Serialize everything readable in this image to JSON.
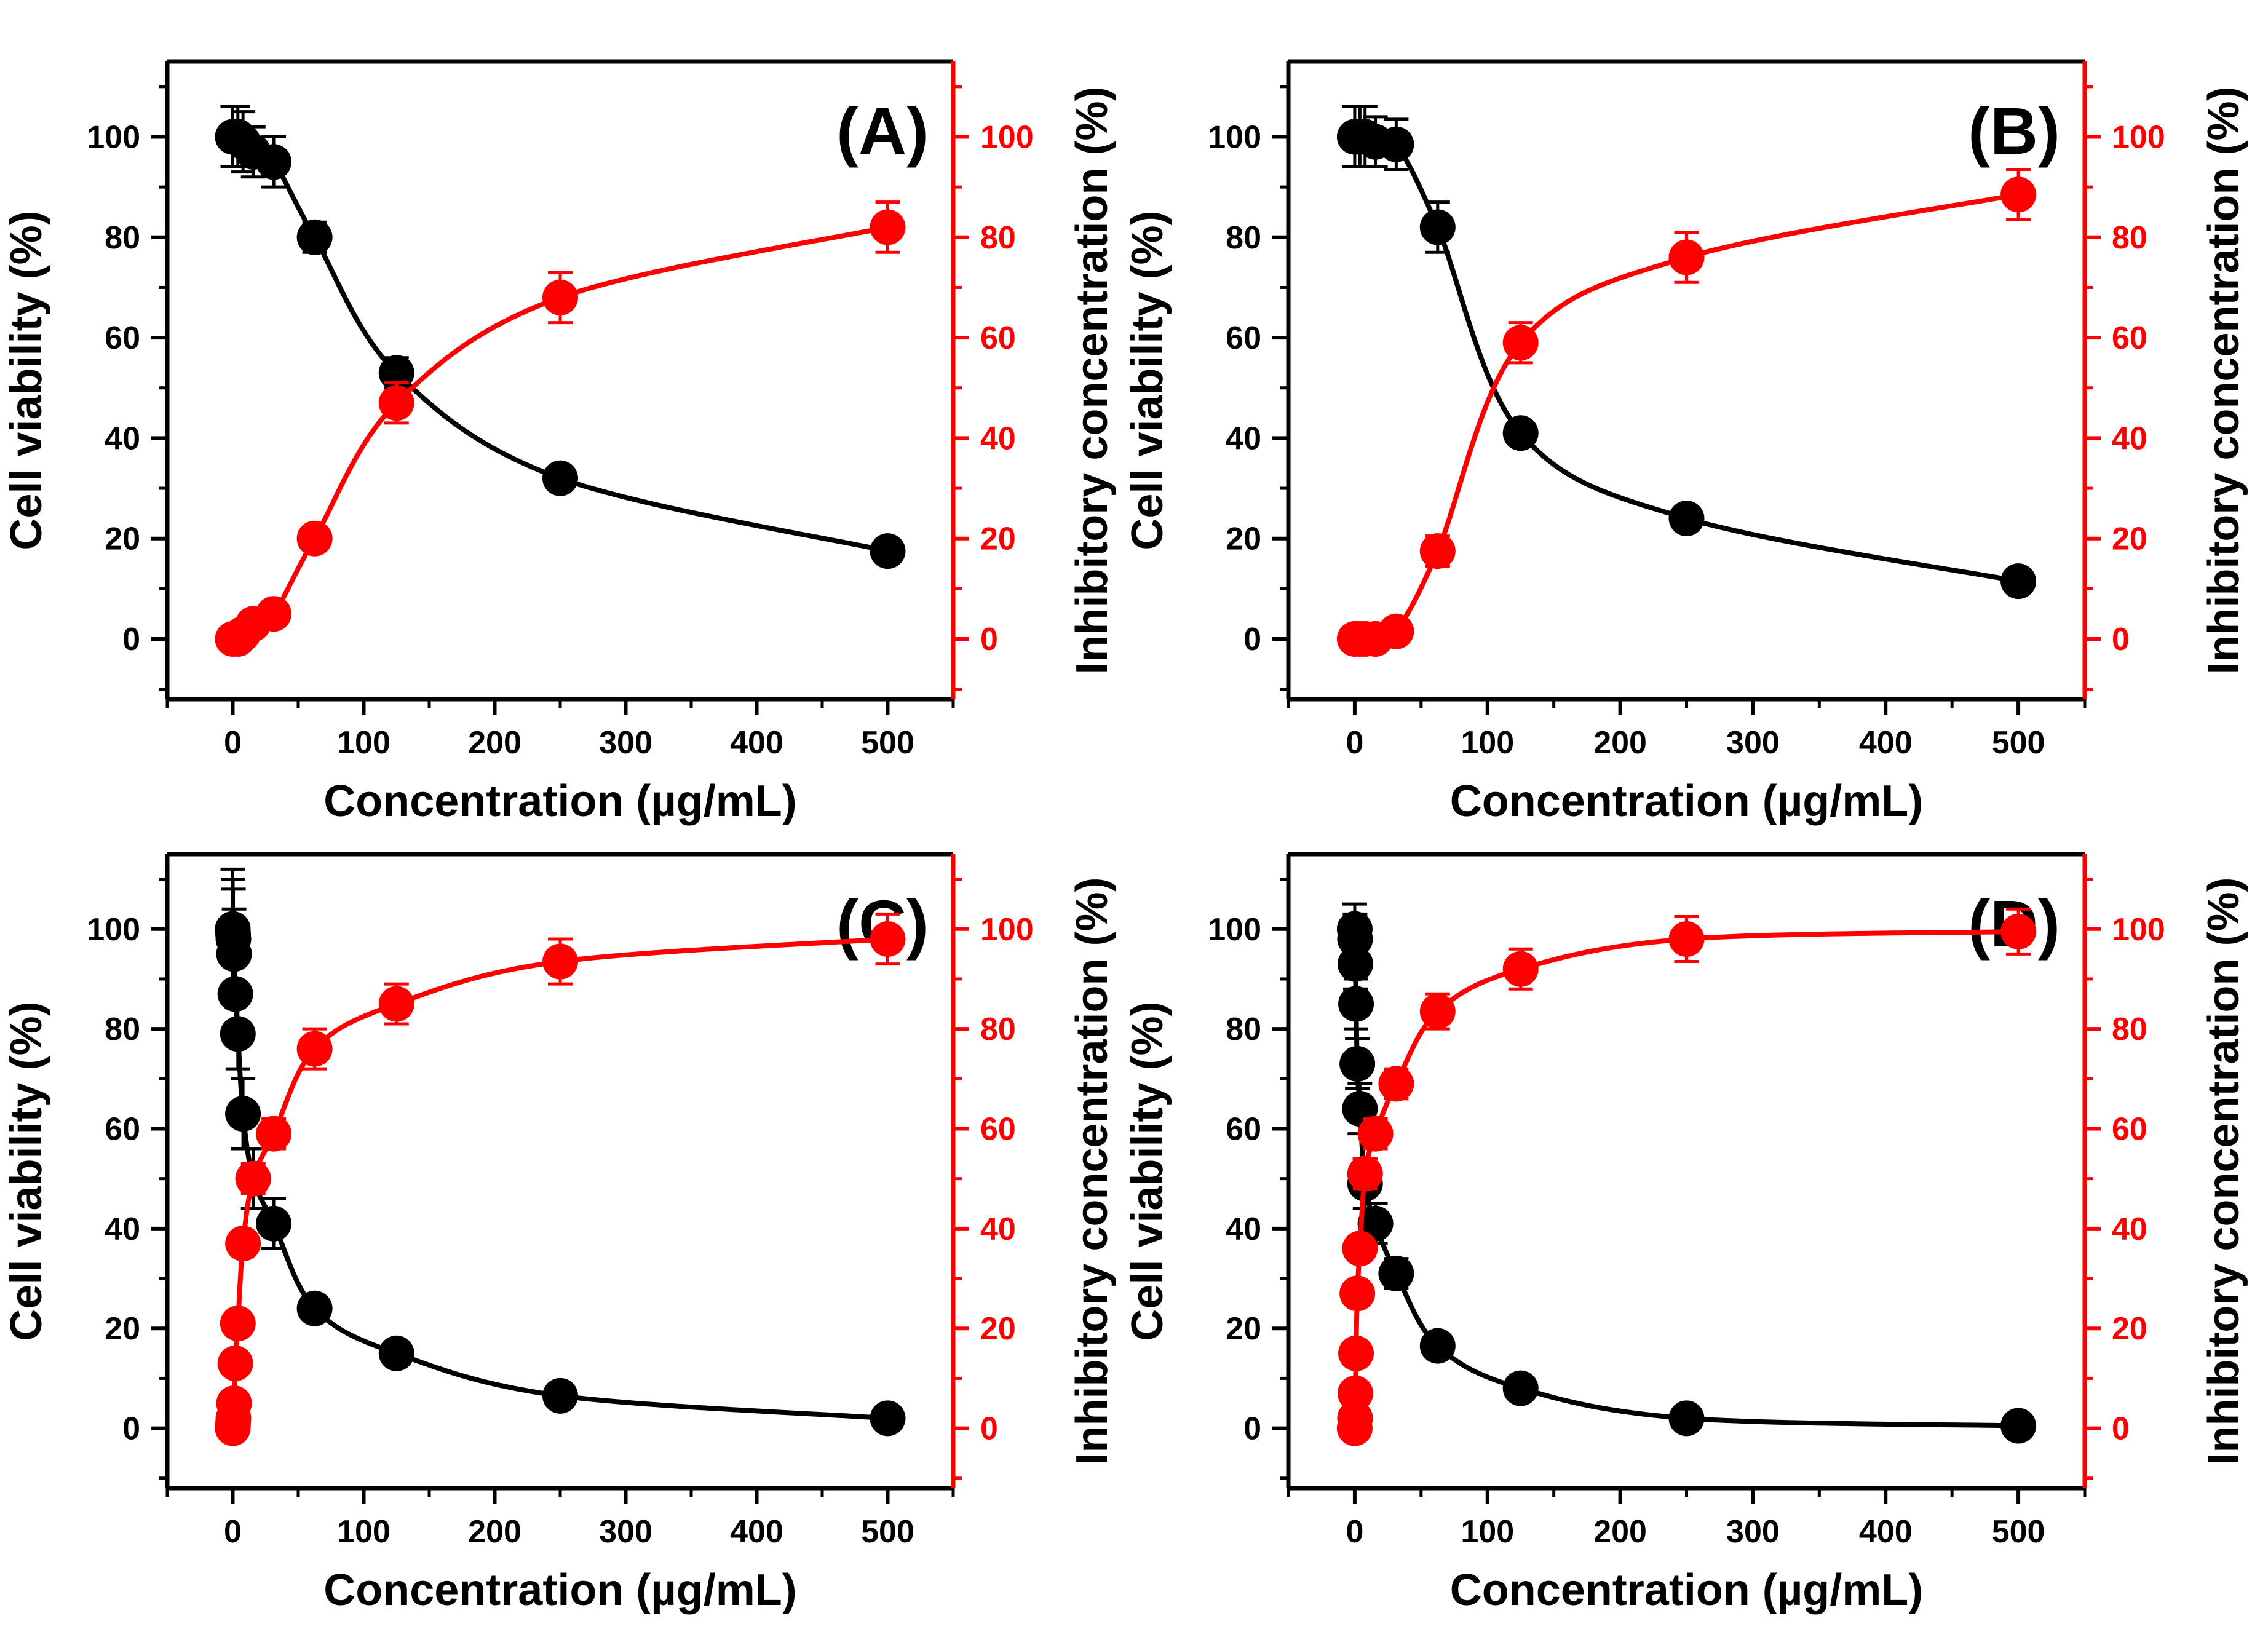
{
  "colors": {
    "viability": "#000000",
    "inhibition": "#ff0000",
    "background": "#ffffff"
  },
  "chart_data": [
    {
      "type": "scatter",
      "panel_label": "(A)",
      "xlabel": "Concentration (µg/mL)",
      "ylabel_left": "Cell viability (%)",
      "ylabel_right": "Inhibitory concentration (%)",
      "xlim": [
        -50,
        550
      ],
      "ylim": [
        -12,
        115
      ],
      "xticks": [
        0,
        100,
        200,
        300,
        400,
        500
      ],
      "yticks": [
        0,
        20,
        40,
        60,
        80,
        100
      ],
      "grid": false,
      "series": [
        {
          "axis": "left",
          "color": "#000000",
          "x": [
            0,
            3.9,
            7.8,
            15.6,
            31.25,
            62.5,
            125,
            250,
            500
          ],
          "y": [
            100,
            100,
            99,
            97,
            95,
            80,
            53,
            32,
            17.5
          ],
          "err": [
            6,
            6,
            6,
            5,
            5,
            3,
            3,
            2,
            1.5
          ]
        },
        {
          "axis": "right",
          "color": "#ff0000",
          "x": [
            0,
            3.9,
            7.8,
            15.6,
            31.25,
            62.5,
            125,
            250,
            500
          ],
          "y": [
            0,
            0,
            1,
            3,
            5,
            20,
            47,
            68,
            82
          ],
          "err": [
            1,
            1,
            1,
            1,
            1.5,
            2,
            4,
            5,
            5
          ]
        }
      ]
    },
    {
      "type": "scatter",
      "panel_label": "(B)",
      "xlabel": "Concentration (µg/mL)",
      "ylabel_left": "Cell viability (%)",
      "ylabel_right": "Inhibitory concentration (%)",
      "xlim": [
        -50,
        550
      ],
      "ylim": [
        -12,
        115
      ],
      "xticks": [
        0,
        100,
        200,
        300,
        400,
        500
      ],
      "yticks": [
        0,
        20,
        40,
        60,
        80,
        100
      ],
      "grid": false,
      "series": [
        {
          "axis": "left",
          "color": "#000000",
          "x": [
            0,
            3.9,
            7.8,
            15.6,
            31.25,
            62.5,
            125,
            250,
            500
          ],
          "y": [
            100,
            100,
            100,
            99,
            98.5,
            82,
            41,
            24,
            11.5
          ],
          "err": [
            6,
            6,
            6,
            5,
            5,
            5,
            2,
            2,
            1.5
          ]
        },
        {
          "axis": "right",
          "color": "#ff0000",
          "x": [
            0,
            3.9,
            7.8,
            15.6,
            31.25,
            62.5,
            125,
            250,
            500
          ],
          "y": [
            0,
            0,
            0,
            0,
            1.5,
            17.5,
            59,
            76,
            88.5
          ],
          "err": [
            1,
            1,
            1,
            1,
            1,
            3,
            4,
            5,
            5
          ]
        }
      ]
    },
    {
      "type": "scatter",
      "panel_label": "(C)",
      "xlabel": "Concentration (µg/mL)",
      "ylabel_left": "Cell viability (%)",
      "ylabel_right": "Inhibitory concentration (%)",
      "xlim": [
        -50,
        550
      ],
      "ylim": [
        -12,
        115
      ],
      "xticks": [
        0,
        100,
        200,
        300,
        400,
        500
      ],
      "yticks": [
        0,
        20,
        40,
        60,
        80,
        100
      ],
      "grid": false,
      "series": [
        {
          "axis": "left",
          "color": "#000000",
          "x": [
            0,
            0.24,
            0.49,
            0.98,
            1.95,
            3.9,
            7.8,
            15.6,
            31.25,
            62.5,
            125,
            250,
            500
          ],
          "y": [
            100,
            99,
            98,
            95,
            87,
            79,
            63,
            50,
            41,
            24,
            15,
            6.5,
            2
          ],
          "err": [
            12,
            11,
            10,
            9,
            8,
            7,
            7,
            6,
            5,
            2,
            2,
            1.5,
            1.5
          ]
        },
        {
          "axis": "right",
          "color": "#ff0000",
          "x": [
            0,
            0.24,
            0.49,
            0.98,
            1.95,
            3.9,
            7.8,
            15.6,
            31.25,
            62.5,
            125,
            250,
            500
          ],
          "y": [
            0,
            1,
            2,
            5,
            13,
            21,
            37,
            50,
            59,
            76,
            85,
            93.5,
            98
          ],
          "err": [
            1,
            1,
            1,
            1,
            1,
            1,
            2,
            3,
            3,
            4,
            4,
            4.5,
            5
          ]
        }
      ]
    },
    {
      "type": "scatter",
      "panel_label": "(D)",
      "xlabel": "Concentration (µg/mL)",
      "ylabel_left": "Cell viability (%)",
      "ylabel_right": "Inhibitory concentration (%)",
      "xlim": [
        -50,
        550
      ],
      "ylim": [
        -12,
        115
      ],
      "xticks": [
        0,
        100,
        200,
        300,
        400,
        500
      ],
      "yticks": [
        0,
        20,
        40,
        60,
        80,
        100
      ],
      "grid": false,
      "series": [
        {
          "axis": "left",
          "color": "#000000",
          "x": [
            0,
            0.24,
            0.49,
            0.98,
            1.95,
            3.9,
            7.8,
            15.6,
            31.25,
            62.5,
            125,
            250,
            500
          ],
          "y": [
            100,
            98,
            93,
            85,
            73,
            64,
            49,
            41,
            31,
            16.5,
            8,
            2,
            0.5
          ],
          "err": [
            5,
            5,
            5,
            5,
            5,
            5,
            5,
            4,
            3,
            2,
            1.5,
            1,
            1
          ]
        },
        {
          "axis": "right",
          "color": "#ff0000",
          "x": [
            0,
            0.24,
            0.49,
            0.98,
            1.95,
            3.9,
            7.8,
            15.6,
            31.25,
            62.5,
            125,
            250,
            500
          ],
          "y": [
            0,
            2,
            7,
            15,
            27,
            36,
            51,
            59,
            69,
            83.5,
            92,
            98,
            99.5
          ],
          "err": [
            1,
            1,
            1,
            1,
            1,
            2,
            3,
            3,
            3,
            3.5,
            4,
            4.5,
            4.5
          ]
        }
      ]
    }
  ]
}
